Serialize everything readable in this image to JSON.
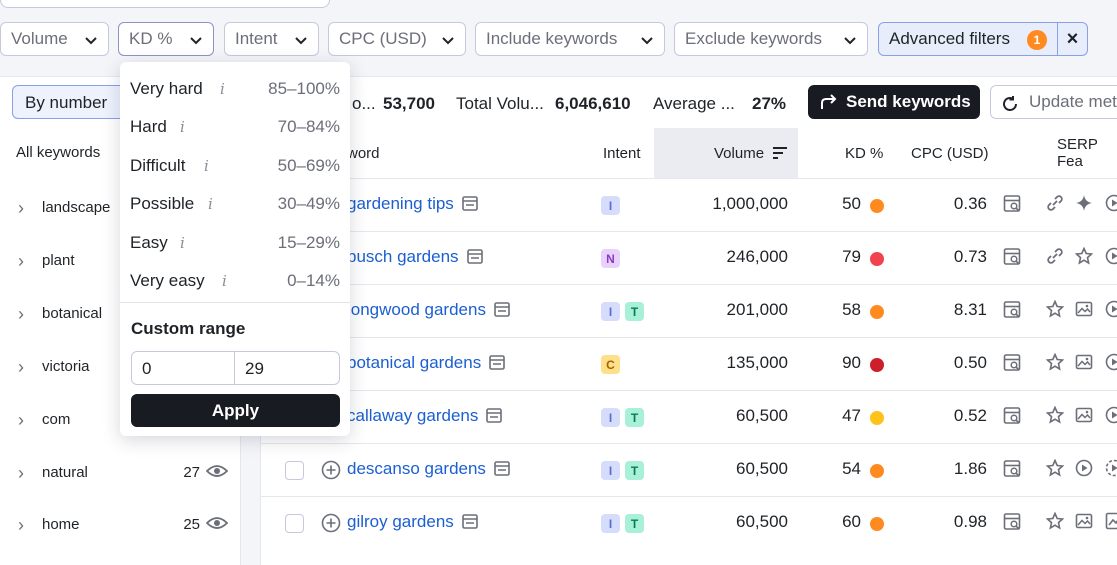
{
  "filters": {
    "volume_label": "Volume",
    "kd_label": "KD %",
    "intent_label": "Intent",
    "cpc_label": "CPC (USD)",
    "include_label": "Include keywords",
    "exclude_label": "Exclude keywords",
    "advanced_label": "Advanced filters",
    "advanced_count": "1",
    "clear_symbol": "×"
  },
  "summary": {
    "view_label": "By number",
    "keywords_label_cut": "o...",
    "keywords_value": "53,700",
    "total_volume_label": "Total Volu...",
    "total_volume_value": "6,046,610",
    "average_label": "Average ...",
    "average_value": "27%",
    "send_label": "Send keywords",
    "update_label": "Update met"
  },
  "left_panel": {
    "heading": "All keywords",
    "groups": [
      {
        "name": "landscape",
        "count": ""
      },
      {
        "name": "plant",
        "count": ""
      },
      {
        "name": "botanical",
        "count": ""
      },
      {
        "name": "victoria",
        "count": ""
      },
      {
        "name": "com",
        "count": ""
      },
      {
        "name": "natural",
        "count": "27"
      },
      {
        "name": "home",
        "count": "25"
      }
    ]
  },
  "table": {
    "headers": {
      "keyword": "word",
      "intent": "Intent",
      "volume": "Volume",
      "kd": "KD %",
      "cpc": "CPC (USD)",
      "serp": "SERP Fea"
    },
    "rows": [
      {
        "keyword": "gardening tips",
        "intents": [
          "I"
        ],
        "volume": "1,000,000",
        "kd": "50",
        "kd_color": "#ff8a1f",
        "cpc": "0.36",
        "serp": [
          "link-icon",
          "sparkle-icon",
          "play-icon"
        ]
      },
      {
        "keyword": "busch gardens",
        "intents": [
          "N"
        ],
        "volume": "246,000",
        "kd": "79",
        "kd_color": "#f0424f",
        "cpc": "0.73",
        "serp": [
          "link-icon",
          "star-icon",
          "play-icon"
        ]
      },
      {
        "keyword": "longwood gardens",
        "intents": [
          "I",
          "T"
        ],
        "volume": "201,000",
        "kd": "58",
        "kd_color": "#ff8a1f",
        "cpc": "8.31",
        "serp": [
          "star-icon",
          "image-icon",
          "play-icon"
        ]
      },
      {
        "keyword": "botanical gardens",
        "intents": [
          "C"
        ],
        "volume": "135,000",
        "kd": "90",
        "kd_color": "#cc1f2b",
        "cpc": "0.50",
        "serp": [
          "star-icon",
          "image-icon",
          "play-icon"
        ]
      },
      {
        "keyword": "callaway gardens",
        "intents": [
          "I",
          "T"
        ],
        "volume": "60,500",
        "kd": "47",
        "kd_color": "#ffc21a",
        "cpc": "0.52",
        "serp": [
          "star-icon",
          "image-icon",
          "play-icon"
        ]
      },
      {
        "keyword": "descanso gardens",
        "intents": [
          "I",
          "T"
        ],
        "volume": "60,500",
        "kd": "54",
        "kd_color": "#ff8a1f",
        "cpc": "1.86",
        "serp": [
          "star-icon",
          "play-icon",
          "dashed-play-icon"
        ]
      },
      {
        "keyword": "gilroy gardens",
        "intents": [
          "I",
          "T"
        ],
        "volume": "60,500",
        "kd": "60",
        "kd_color": "#ff8a1f",
        "cpc": "0.98",
        "serp": [
          "star-icon",
          "image-icon",
          "chart-icon"
        ]
      }
    ]
  },
  "kd_menu": {
    "options": [
      {
        "label": "Very hard",
        "range": "85–100%"
      },
      {
        "label": "Hard",
        "range": "70–84%"
      },
      {
        "label": "Difficult",
        "range": "50–69%"
      },
      {
        "label": "Possible",
        "range": "30–49%"
      },
      {
        "label": "Easy",
        "range": "15–29%"
      },
      {
        "label": "Very easy",
        "range": "0–14%"
      }
    ],
    "info_glyph": "i",
    "custom_title": "Custom range",
    "from_value": "0",
    "to_value": "29",
    "apply_label": "Apply"
  }
}
